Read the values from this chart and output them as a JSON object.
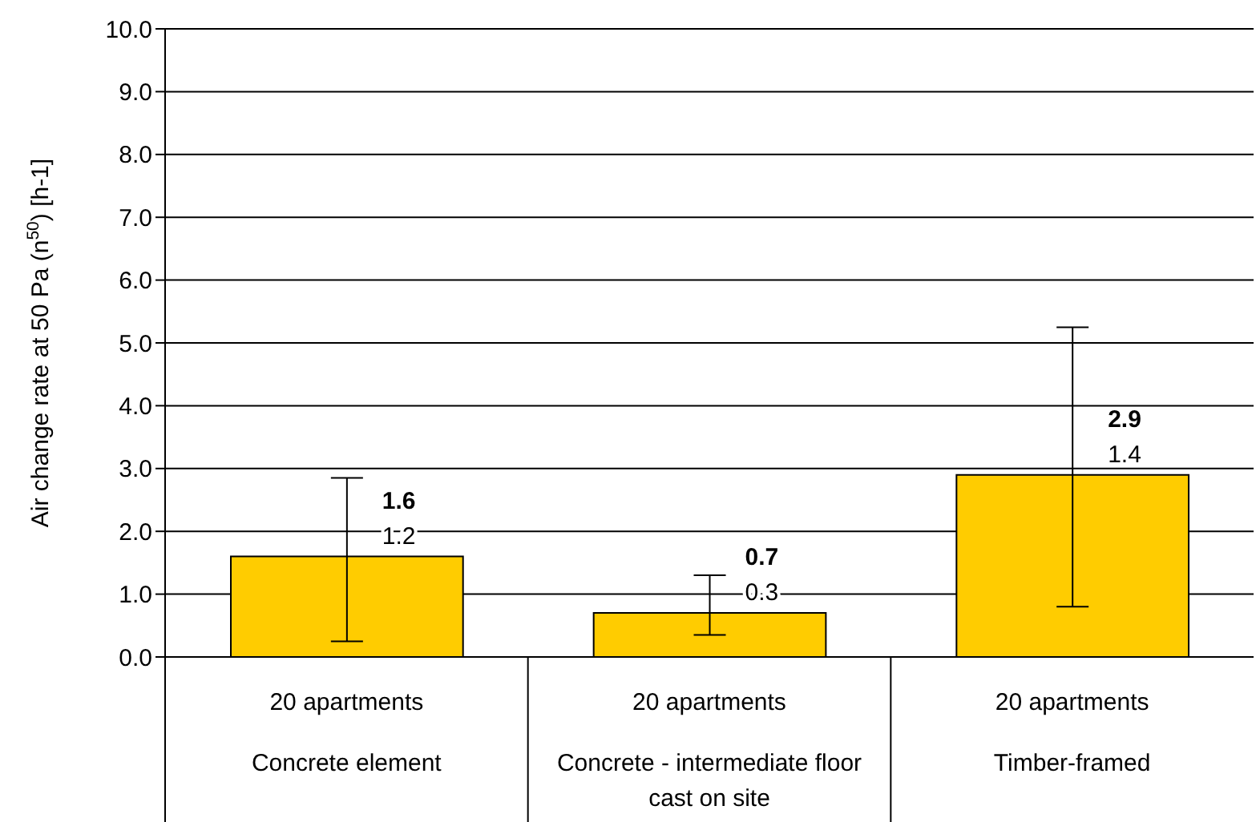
{
  "chart_data": {
    "type": "bar",
    "ylabel": "Air change rate at 50 Pa (n$^{50}$) [h-1]",
    "categories": [
      "20 apartments\nConcrete element",
      "20 apartments\nConcrete - intermediate floor\ncast on site",
      "20 apartments\nTimber-framed"
    ],
    "values": [
      1.6,
      0.7,
      2.9
    ],
    "errors": [
      [
        0.25,
        2.85
      ],
      [
        0.35,
        1.3
      ],
      [
        0.8,
        5.25
      ]
    ],
    "color": "#ffcc00",
    "ylim": [
      0,
      10
    ],
    "yticks": [
      {
        "value": 0,
        "label": "0.0"
      },
      {
        "value": 1,
        "label": "1.0"
      },
      {
        "value": 2,
        "label": "2.0"
      },
      {
        "value": 3,
        "label": "3.0"
      },
      {
        "value": 4,
        "label": "4.0"
      },
      {
        "value": 5,
        "label": "5.0"
      },
      {
        "value": 6,
        "label": "6.0"
      },
      {
        "value": 7,
        "label": "7.0"
      },
      {
        "value": 8,
        "label": "8.0"
      },
      {
        "value": 9,
        "label": "9.0"
      },
      {
        "value": 10,
        "label": "10.0"
      }
    ],
    "grid": "y",
    "data_labels": true,
    "annotations": [
      "1.2",
      "0.3",
      "1.4"
    ]
  }
}
